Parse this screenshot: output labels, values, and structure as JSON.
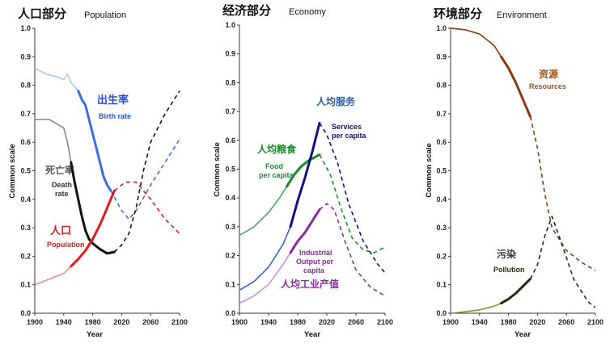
{
  "chart_data": [
    {
      "type": "line",
      "title_cn": "人口部分",
      "title_en": "Population",
      "xlabel": "Year",
      "ylabel": "Common scale",
      "xlim": [
        1900,
        2100
      ],
      "ylim": [
        0,
        1.0
      ],
      "xticks": [
        "1900",
        "1940",
        "1980",
        "2020",
        "2060",
        "2100"
      ],
      "yticks": [
        "0.0",
        "0.1",
        "0.2",
        "0.3",
        "0.4",
        "0.5",
        "0.6",
        "0.7",
        "0.8",
        "0.9",
        "1.0"
      ],
      "grid": false,
      "series": [
        {
          "key": "birth",
          "name": "出生率",
          "name_en": "Birth rate",
          "color": "#3a6fe0",
          "hist_color": "#a9c8ee",
          "hist": [
            [
              1900,
              0.86
            ],
            [
              1915,
              0.84
            ],
            [
              1930,
              0.83
            ],
            [
              1940,
              0.82
            ],
            [
              1945,
              0.84
            ],
            [
              1950,
              0.81
            ],
            [
              1960,
              0.78
            ]
          ],
          "obs": [
            [
              1960,
              0.78
            ],
            [
              1965,
              0.75
            ],
            [
              1970,
              0.73
            ],
            [
              1975,
              0.68
            ],
            [
              1980,
              0.63
            ],
            [
              1985,
              0.58
            ],
            [
              1990,
              0.53
            ],
            [
              1995,
              0.48
            ],
            [
              2000,
              0.45
            ],
            [
              2005,
              0.43
            ]
          ],
          "proj": [
            [
              2005,
              0.43
            ],
            [
              2020,
              0.36
            ],
            [
              2030,
              0.33
            ],
            [
              2040,
              0.36
            ],
            [
              2060,
              0.45
            ],
            [
              2080,
              0.53
            ],
            [
              2100,
              0.61
            ]
          ]
        },
        {
          "key": "death",
          "name": "死亡率",
          "name_en": "Death rate",
          "color": "#111111",
          "hist_color": "#8a8a8a",
          "hist": [
            [
              1900,
              0.68
            ],
            [
              1920,
              0.68
            ],
            [
              1940,
              0.65
            ],
            [
              1945,
              0.6
            ],
            [
              1950,
              0.53
            ]
          ],
          "obs": [
            [
              1950,
              0.53
            ],
            [
              1955,
              0.46
            ],
            [
              1960,
              0.4
            ],
            [
              1965,
              0.34
            ],
            [
              1970,
              0.29
            ],
            [
              1975,
              0.26
            ],
            [
              1980,
              0.245
            ],
            [
              1990,
              0.225
            ],
            [
              2000,
              0.21
            ],
            [
              2010,
              0.215
            ]
          ],
          "proj": [
            [
              2010,
              0.215
            ],
            [
              2020,
              0.24
            ],
            [
              2030,
              0.28
            ],
            [
              2040,
              0.37
            ],
            [
              2050,
              0.5
            ],
            [
              2060,
              0.6
            ],
            [
              2080,
              0.7
            ],
            [
              2100,
              0.78
            ]
          ]
        },
        {
          "key": "population",
          "name": "人口",
          "name_en": "Population",
          "color": "#e01b1b",
          "hist_color": "#ee8a8a",
          "hist": [
            [
              1900,
              0.1
            ],
            [
              1920,
              0.12
            ],
            [
              1940,
              0.14
            ],
            [
              1950,
              0.165
            ]
          ],
          "obs": [
            [
              1950,
              0.165
            ],
            [
              1960,
              0.19
            ],
            [
              1970,
              0.22
            ],
            [
              1980,
              0.26
            ],
            [
              1990,
              0.31
            ],
            [
              2000,
              0.37
            ],
            [
              2010,
              0.43
            ]
          ],
          "proj": [
            [
              2010,
              0.43
            ],
            [
              2025,
              0.46
            ],
            [
              2040,
              0.46
            ],
            [
              2060,
              0.4
            ],
            [
              2080,
              0.33
            ],
            [
              2100,
              0.28
            ]
          ]
        }
      ]
    },
    {
      "type": "line",
      "title_cn": "经济部分",
      "title_en": "Economy",
      "xlabel": "Year",
      "ylabel": "Common scale",
      "xlim": [
        1900,
        2100
      ],
      "ylim": [
        0,
        1.0
      ],
      "xticks": [
        "1900",
        "1940",
        "1980",
        "2020",
        "2060",
        "2100"
      ],
      "yticks": [
        "0.0",
        "0.1",
        "0.2",
        "0.3",
        "0.4",
        "0.5",
        "0.6",
        "0.7",
        "0.8",
        "0.9",
        "1.0"
      ],
      "grid": false,
      "series": [
        {
          "key": "food",
          "name": "人均粮食",
          "name_en": "Food per capita",
          "color": "#1a8a2a",
          "hist_color": "#4aa85a",
          "hist": [
            [
              1900,
              0.27
            ],
            [
              1920,
              0.3
            ],
            [
              1940,
              0.35
            ],
            [
              1955,
              0.4
            ],
            [
              1965,
              0.44
            ]
          ],
          "obs": [
            [
              1965,
              0.44
            ],
            [
              1975,
              0.48
            ],
            [
              1985,
              0.51
            ],
            [
              1995,
              0.53
            ],
            [
              2010,
              0.55
            ]
          ],
          "proj": [
            [
              2010,
              0.55
            ],
            [
              2025,
              0.48
            ],
            [
              2040,
              0.36
            ],
            [
              2055,
              0.26
            ],
            [
              2070,
              0.22
            ],
            [
              2085,
              0.21
            ],
            [
              2100,
              0.23
            ]
          ]
        },
        {
          "key": "services",
          "name": "人均服务",
          "name_en": "Services per capita",
          "color": "#101080",
          "hist_color": "#3a64d0",
          "hist": [
            [
              1900,
              0.08
            ],
            [
              1920,
              0.11
            ],
            [
              1940,
              0.16
            ],
            [
              1960,
              0.24
            ],
            [
              1970,
              0.3
            ]
          ],
          "obs": [
            [
              1970,
              0.3
            ],
            [
              1980,
              0.39
            ],
            [
              1990,
              0.47
            ],
            [
              2000,
              0.56
            ],
            [
              2010,
              0.66
            ]
          ],
          "proj": [
            [
              2010,
              0.66
            ],
            [
              2020,
              0.62
            ],
            [
              2035,
              0.52
            ],
            [
              2050,
              0.38
            ],
            [
              2070,
              0.25
            ],
            [
              2090,
              0.17
            ],
            [
              2100,
              0.14
            ]
          ]
        },
        {
          "key": "industrial",
          "name": "人均工业产值",
          "name_en": "Industrial Output per capita",
          "color": "#8a2aa0",
          "hist_color": "#c890d8",
          "hist": [
            [
              1900,
              0.035
            ],
            [
              1920,
              0.06
            ],
            [
              1940,
              0.1
            ],
            [
              1960,
              0.17
            ],
            [
              1970,
              0.21
            ]
          ],
          "obs": [
            [
              1970,
              0.21
            ],
            [
              1980,
              0.25
            ],
            [
              1990,
              0.28
            ],
            [
              2000,
              0.32
            ],
            [
              2010,
              0.36
            ]
          ],
          "proj": [
            [
              2010,
              0.36
            ],
            [
              2020,
              0.38
            ],
            [
              2030,
              0.36
            ],
            [
              2045,
              0.25
            ],
            [
              2060,
              0.15
            ],
            [
              2080,
              0.09
            ],
            [
              2100,
              0.06
            ]
          ]
        }
      ]
    },
    {
      "type": "line",
      "title_cn": "环境部分",
      "title_en": "Environment",
      "xlabel": "Year",
      "ylabel": "Common scale",
      "xlim": [
        1900,
        2100
      ],
      "ylim": [
        0,
        1.0
      ],
      "xticks": [
        "1900",
        "1940",
        "1980",
        "2020",
        "2060",
        "2100"
      ],
      "yticks": [
        "0.0",
        "0.1",
        "0.2",
        "0.3",
        "0.4",
        "0.5",
        "0.6",
        "0.7",
        "0.8",
        "0.9",
        "1.0"
      ],
      "grid": false,
      "series": [
        {
          "key": "resources",
          "name": "资源",
          "name_en": "Resources",
          "color": "#8a3a10",
          "hist_color": "#8a3a10",
          "hist": [
            [
              1900,
              1.0
            ],
            [
              1920,
              0.995
            ],
            [
              1940,
              0.98
            ],
            [
              1960,
              0.94
            ],
            [
              1970,
              0.9
            ]
          ],
          "obs": [
            [
              1970,
              0.9
            ],
            [
              1980,
              0.86
            ],
            [
              1990,
              0.81
            ],
            [
              2000,
              0.75
            ],
            [
              2010,
              0.69
            ]
          ],
          "proj": [
            [
              2010,
              0.69
            ],
            [
              2020,
              0.58
            ],
            [
              2030,
              0.42
            ],
            [
              2040,
              0.3
            ],
            [
              2060,
              0.22
            ],
            [
              2080,
              0.18
            ],
            [
              2100,
              0.15
            ]
          ]
        },
        {
          "key": "pollution",
          "name": "污染",
          "name_en": "Pollution",
          "color": "#1e2e0e",
          "hist_color": "#7a9a2a",
          "hist": [
            [
              1900,
              0.0
            ],
            [
              1920,
              0.005
            ],
            [
              1940,
              0.012
            ],
            [
              1960,
              0.025
            ],
            [
              1970,
              0.035
            ]
          ],
          "obs": [
            [
              1970,
              0.035
            ],
            [
              1980,
              0.05
            ],
            [
              1990,
              0.07
            ],
            [
              2000,
              0.095
            ],
            [
              2010,
              0.12
            ]
          ],
          "proj": [
            [
              2010,
              0.12
            ],
            [
              2020,
              0.17
            ],
            [
              2030,
              0.27
            ],
            [
              2040,
              0.34
            ],
            [
              2050,
              0.27
            ],
            [
              2070,
              0.12
            ],
            [
              2090,
              0.04
            ],
            [
              2100,
              0.02
            ]
          ]
        }
      ]
    }
  ]
}
